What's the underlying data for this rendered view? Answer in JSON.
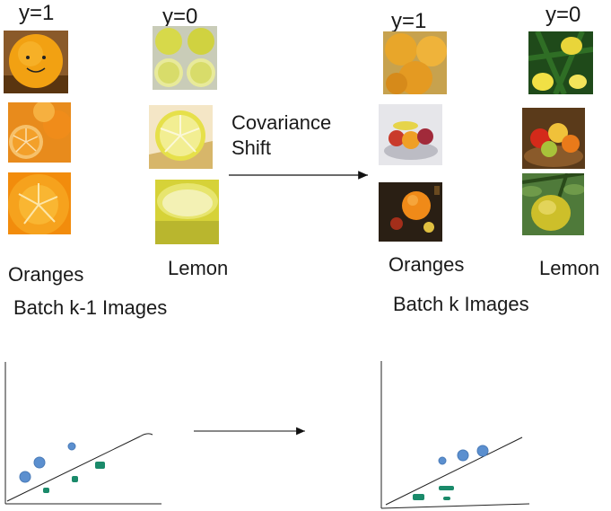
{
  "batch_prev": {
    "label_y1": "y=1",
    "label_y0": "y=0",
    "class_a": "Oranges",
    "class_b": "Lemon",
    "title": "Batch k-1 Images"
  },
  "batch_curr": {
    "label_y1": "y=1",
    "label_y0": "y=0",
    "class_a": "Oranges",
    "class_b": "Lemon",
    "title": "Batch k Images"
  },
  "shift": {
    "line1": "Covariance",
    "line2": "Shift"
  },
  "icons": {
    "thumbnails": [
      "orange-smiley-photo",
      "orange-slices-photo",
      "orange-closeup-photo",
      "lemon-halves-photo",
      "lemon-slice-photo",
      "lemon-cut-photo",
      "oranges-pile-photo",
      "fruit-bowl-photo",
      "orange-dark-photo",
      "lemon-tree-photo",
      "fruit-basket-photo",
      "lemon-on-branch-photo"
    ],
    "arrows": [
      "shift-arrow",
      "plot-shift-arrow"
    ]
  },
  "colors": {
    "orange_point": "#5b8fcf",
    "lemon_point": "#1a8a6a",
    "axis": "#222222",
    "text": "#1a1a1a"
  }
}
